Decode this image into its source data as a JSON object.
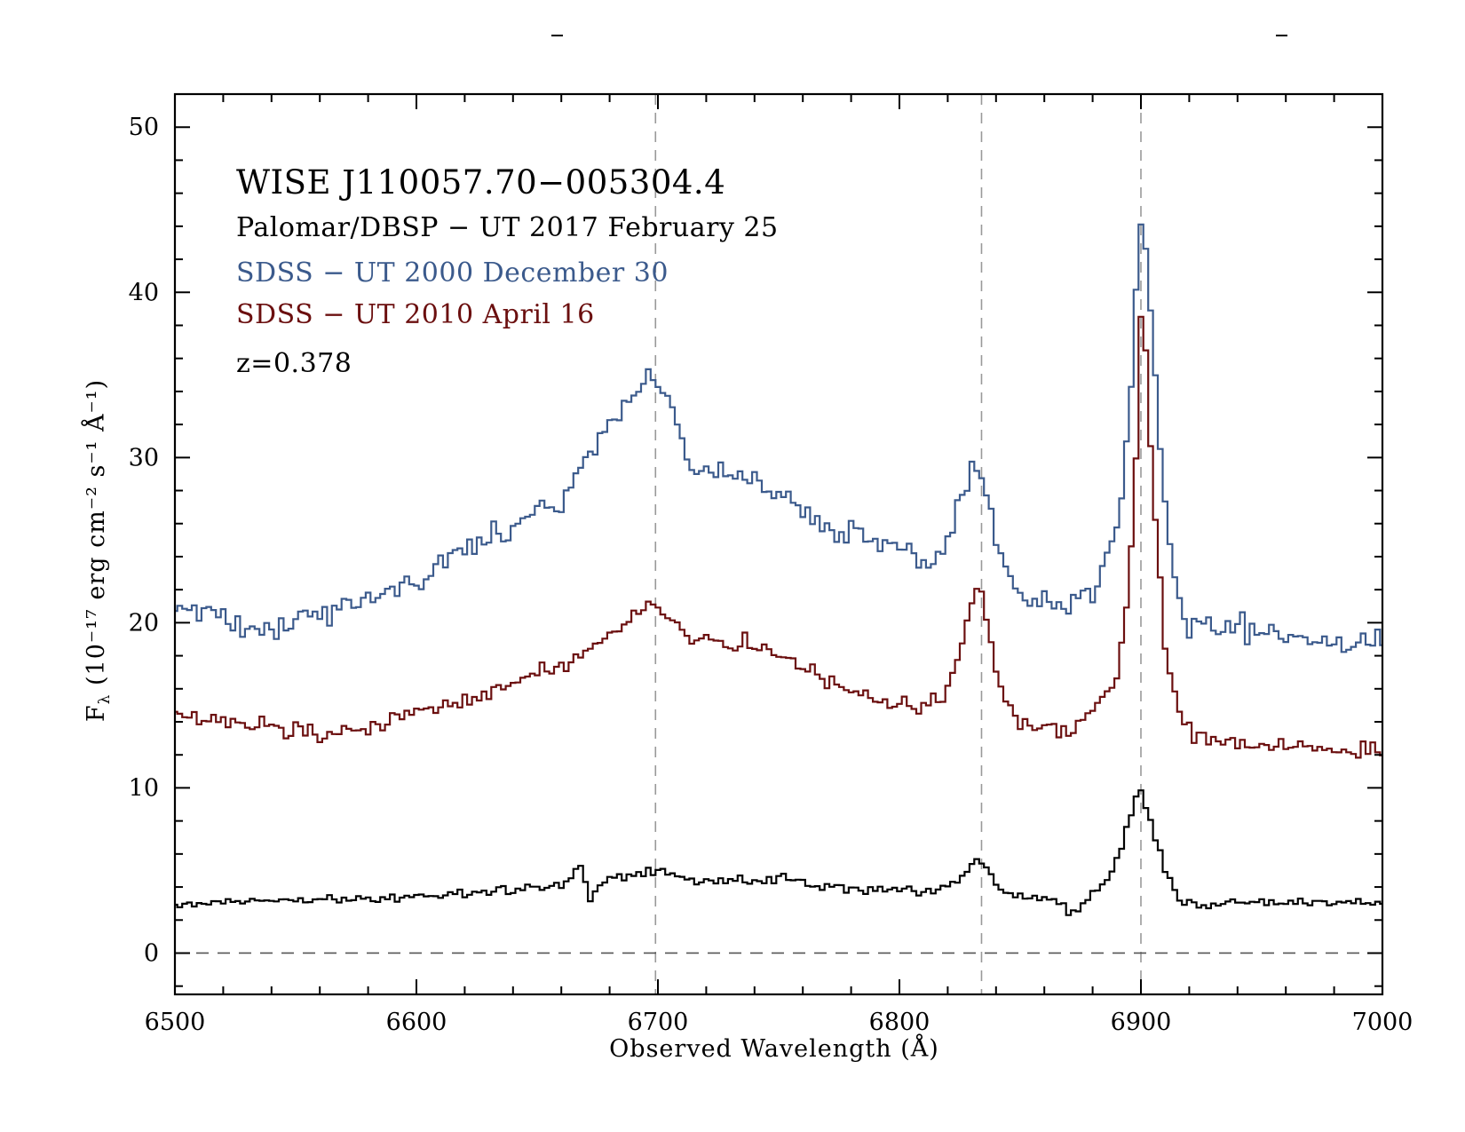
{
  "colors": {
    "palomar": "#000000",
    "sdss_2000": "#3b5a8c",
    "sdss_2010": "#6b0f0f",
    "guides": "#999999",
    "frame": "#000000"
  },
  "chart_data": {
    "type": "line",
    "style": "step",
    "title": "WISE J110057.70−005304.4",
    "legend": [
      {
        "label": "Palomar/DBSP − UT 2017 February 25",
        "series": "palomar"
      },
      {
        "label": "SDSS − UT 2000 December 30",
        "series": "sdss_2000"
      },
      {
        "label": "SDSS − UT 2010 April 16",
        "series": "sdss_2010"
      }
    ],
    "annotation": "z=0.378",
    "legend_placement": "top-left",
    "xlabel": "Observed Wavelength (Å)",
    "ylabel_main": "F",
    "ylabel_sub": "λ",
    "ylabel_rest": " (10⁻¹⁷ erg cm⁻² s⁻¹ Å⁻¹)",
    "xlim": [
      6500,
      7000
    ],
    "ylim": [
      -2.5,
      52
    ],
    "xticks": [
      6500,
      6600,
      6700,
      6800,
      6900,
      7000
    ],
    "yticks": [
      0,
      10,
      20,
      30,
      40,
      50
    ],
    "x_minor_step": 20,
    "y_minor_step": 2,
    "grid": false,
    "vertical_guides": [
      6699,
      6834,
      6900
    ],
    "zero_line": 0,
    "step_width": 2,
    "series": [
      {
        "id": "sdss_2000",
        "x": [
          6500,
          6510,
          6520,
          6530,
          6540,
          6550,
          6560,
          6570,
          6580,
          6590,
          6600,
          6610,
          6620,
          6630,
          6640,
          6650,
          6660,
          6670,
          6680,
          6690,
          6695,
          6700,
          6705,
          6710,
          6715,
          6720,
          6730,
          6740,
          6750,
          6760,
          6770,
          6780,
          6790,
          6800,
          6810,
          6815,
          6820,
          6825,
          6830,
          6833,
          6836,
          6840,
          6845,
          6850,
          6860,
          6870,
          6880,
          6885,
          6890,
          6895,
          6898,
          6900,
          6902,
          6905,
          6910,
          6915,
          6920,
          6930,
          6940,
          6950,
          6960,
          6970,
          6980,
          6990,
          7000
        ],
        "y": [
          21,
          20.5,
          20.5,
          20,
          19.6,
          20.6,
          20.6,
          21.1,
          21.5,
          21.8,
          22.5,
          23.4,
          24.6,
          25,
          25.8,
          27,
          27.3,
          30,
          32,
          33.5,
          34.7,
          34.6,
          33.8,
          31,
          29,
          29.2,
          28.8,
          28.4,
          27.5,
          26.8,
          25.5,
          25.4,
          25,
          24.6,
          23.3,
          23.5,
          24.8,
          27.5,
          29,
          29.2,
          27.5,
          25,
          22.5,
          21.8,
          21.3,
          21,
          21.5,
          23.5,
          26,
          32,
          40,
          44.7,
          43,
          37,
          26.5,
          21.5,
          20,
          19.5,
          19.6,
          19.5,
          19.2,
          18.8,
          18.7,
          18.8,
          18.4
        ],
        "noise": 0.8
      },
      {
        "id": "sdss_2010",
        "x": [
          6500,
          6510,
          6520,
          6530,
          6540,
          6550,
          6560,
          6570,
          6580,
          6590,
          6600,
          6610,
          6620,
          6630,
          6640,
          6650,
          6660,
          6670,
          6680,
          6690,
          6695,
          6700,
          6705,
          6710,
          6720,
          6730,
          6740,
          6750,
          6760,
          6770,
          6780,
          6790,
          6800,
          6810,
          6815,
          6820,
          6825,
          6830,
          6833,
          6836,
          6840,
          6845,
          6850,
          6860,
          6870,
          6880,
          6885,
          6890,
          6895,
          6898,
          6900,
          6902,
          6905,
          6910,
          6915,
          6920,
          6930,
          6940,
          6950,
          6960,
          6970,
          6980,
          6990,
          7000
        ],
        "y": [
          14.5,
          14,
          14,
          13.8,
          13.6,
          13.4,
          13.2,
          13.3,
          13.6,
          14.2,
          14.5,
          14.8,
          15.2,
          15.6,
          16.5,
          17,
          17.4,
          18.2,
          19.3,
          20.5,
          21.1,
          21,
          20.3,
          19.5,
          19,
          18.6,
          18.8,
          18,
          17.2,
          16.6,
          16,
          15.5,
          15.2,
          14.8,
          15.2,
          16,
          18.5,
          21.3,
          22,
          20.5,
          17,
          14.8,
          14,
          13.5,
          13.5,
          14.5,
          15.5,
          17,
          22,
          30,
          38.3,
          36,
          28,
          18.5,
          14.5,
          13.5,
          12.8,
          12.5,
          12.5,
          12.6,
          12.5,
          12.3,
          12.2,
          12
        ],
        "noise": 0.55
      },
      {
        "id": "palomar",
        "x": [
          6500,
          6520,
          6540,
          6560,
          6580,
          6600,
          6620,
          6640,
          6660,
          6665,
          6668,
          6670,
          6672,
          6680,
          6690,
          6700,
          6710,
          6720,
          6730,
          6740,
          6750,
          6760,
          6770,
          6780,
          6790,
          6800,
          6810,
          6820,
          6825,
          6830,
          6833,
          6836,
          6840,
          6850,
          6860,
          6865,
          6870,
          6875,
          6880,
          6885,
          6890,
          6895,
          6898,
          6900,
          6902,
          6905,
          6910,
          6915,
          6920,
          6940,
          6960,
          6980,
          7000
        ],
        "y": [
          3,
          3.1,
          3.2,
          3.3,
          3.3,
          3.4,
          3.6,
          3.8,
          4.1,
          4.7,
          5.4,
          4.2,
          3.4,
          4.6,
          4.8,
          5,
          4.6,
          4.3,
          4.4,
          4.5,
          4.6,
          4.3,
          4.1,
          3.9,
          3.8,
          3.8,
          3.8,
          4,
          4.5,
          5.5,
          5.8,
          5.3,
          4,
          3.5,
          3.3,
          3,
          2.5,
          2.8,
          3.5,
          4.2,
          5.5,
          8,
          9.6,
          9.7,
          9,
          7.5,
          5,
          3.3,
          3,
          3,
          3.1,
          3.1,
          3.1
        ],
        "noise": 0.28
      }
    ]
  }
}
